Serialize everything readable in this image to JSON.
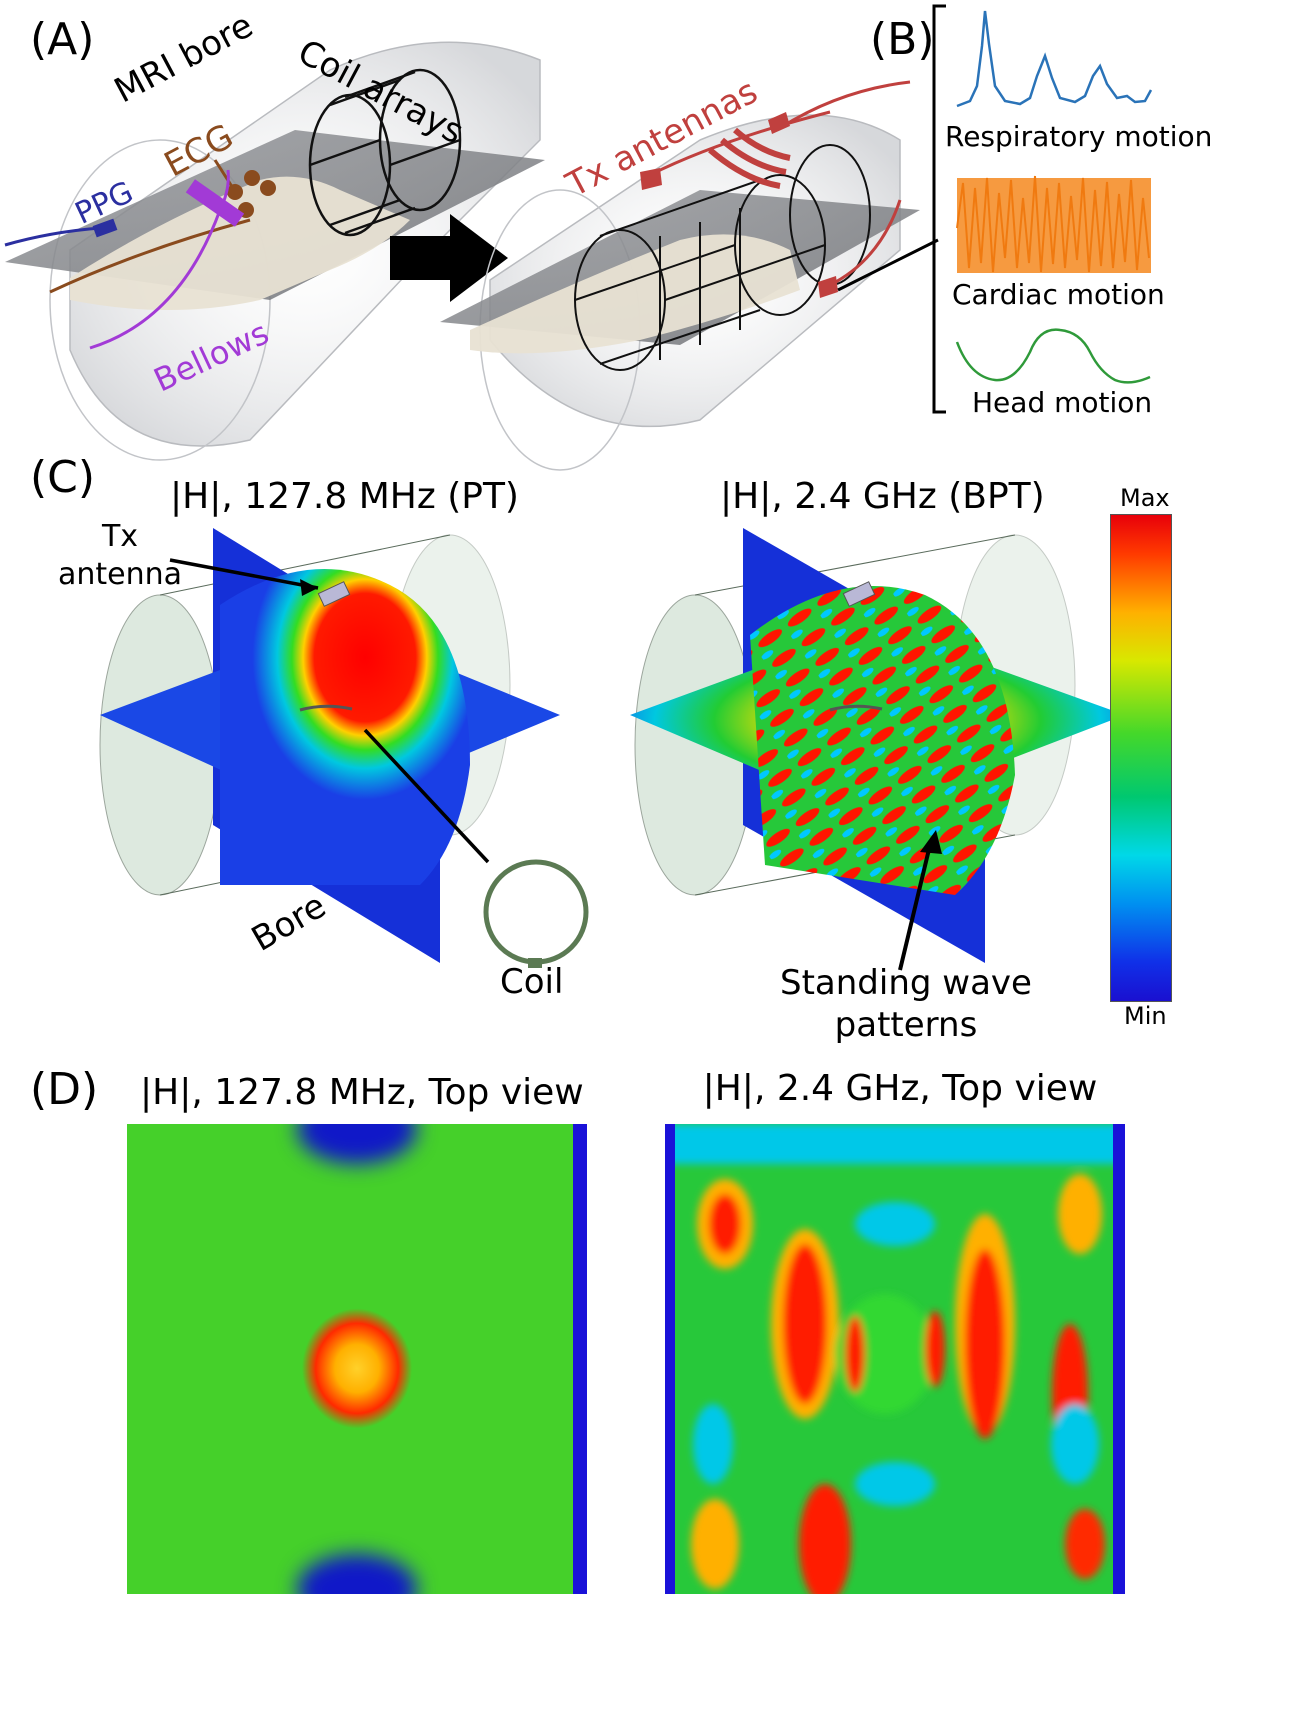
{
  "panels": {
    "a": {
      "letter": "(A)",
      "labels": {
        "mri_bore": "MRI bore",
        "ecg": "ECG",
        "ppg": "PPG",
        "coil_arrays": "Coil arrays",
        "bellows": "Bellows",
        "tx_antennas": "Tx antennas"
      },
      "colors": {
        "ppg": "#2b2fa0",
        "ecg": "#8a4b1e",
        "bellows": "#a23ad6",
        "tx": "#c0403e"
      }
    },
    "b": {
      "letter": "(B)",
      "signals": [
        {
          "label": "Respiratory motion",
          "color": "#2a73b8"
        },
        {
          "label": "Cardiac motion",
          "color": "#f5881f"
        },
        {
          "label": "Head motion",
          "color": "#2f9a3a"
        }
      ]
    },
    "c": {
      "letter": "(C)",
      "left_title": "|H|, 127.8 MHz (PT)",
      "right_title": "|H|, 2.4 GHz (BPT)",
      "labels": {
        "tx_antenna": "Tx\nantenna",
        "bore": "Bore",
        "coil": "Coil",
        "standing_wave": "Standing wave\npatterns"
      },
      "colorbar": {
        "max": "Max",
        "min": "Min"
      }
    },
    "d": {
      "letter": "(D)",
      "left_title": "|H|, 127.8 MHz, Top view",
      "right_title": "|H|, 2.4 GHz, Top view"
    }
  }
}
